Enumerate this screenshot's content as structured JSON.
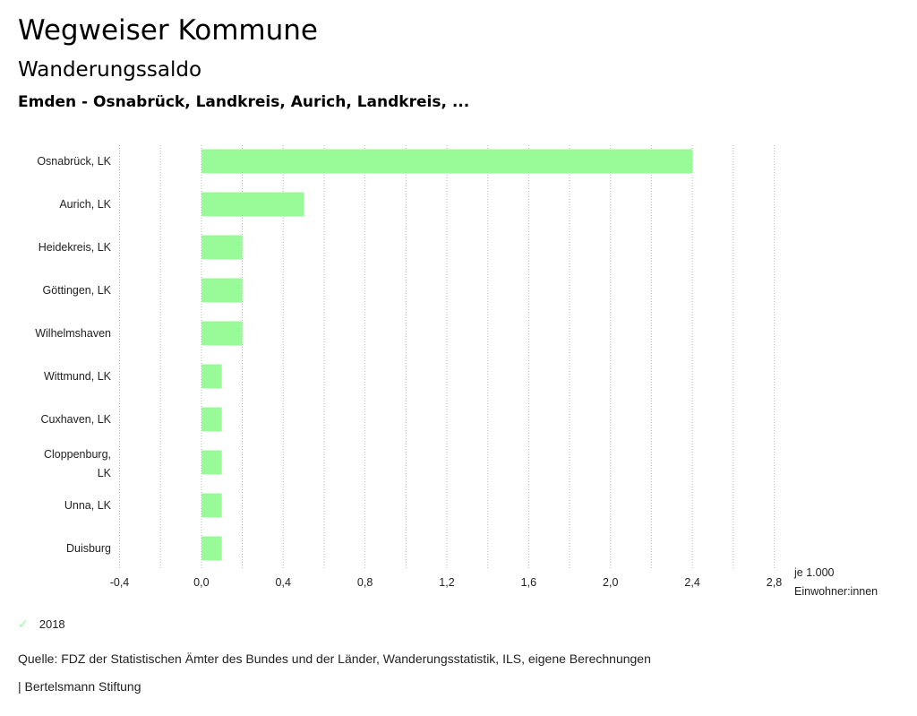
{
  "header": {
    "title": "Wegweiser Kommune",
    "subtitle": "Wanderungssaldo",
    "region": "Emden - Osnabrück, Landkreis, Aurich, Landkreis, ..."
  },
  "chart_data": {
    "type": "bar",
    "orientation": "horizontal",
    "categories": [
      "Osnabrück, LK",
      "Aurich, LK",
      "Heidekreis, LK",
      "Göttingen, LK",
      "Wilhelmshaven",
      "Wittmund, LK",
      "Cuxhaven, LK",
      "Cloppenburg, LK",
      "Unna, LK",
      "Duisburg"
    ],
    "series": [
      {
        "name": "2018",
        "values": [
          2.4,
          0.5,
          0.2,
          0.2,
          0.2,
          0.1,
          0.1,
          0.1,
          0.1,
          0.1
        ]
      }
    ],
    "xlim": [
      -0.4,
      2.8
    ],
    "xticks": [
      -0.4,
      0.0,
      0.4,
      0.8,
      1.2,
      1.6,
      2.0,
      2.4,
      2.8
    ],
    "xtick_labels": [
      "-0,4",
      "0,0",
      "0,4",
      "0,8",
      "1,2",
      "1,6",
      "2,0",
      "2,4",
      "2,8"
    ],
    "xlabel_lines": [
      "je 1.000",
      "Einwohner:innen"
    ],
    "grid": "vertical dotted",
    "bar_color": "#98fb98"
  },
  "legend": {
    "label": "2018",
    "color": "#98fb98"
  },
  "footer": {
    "source": "Quelle: FDZ der Statistischen Ämter des Bundes und der Länder, Wanderungsstatistik, ILS, eigene Berechnungen",
    "brand": "| Bertelsmann Stiftung"
  }
}
